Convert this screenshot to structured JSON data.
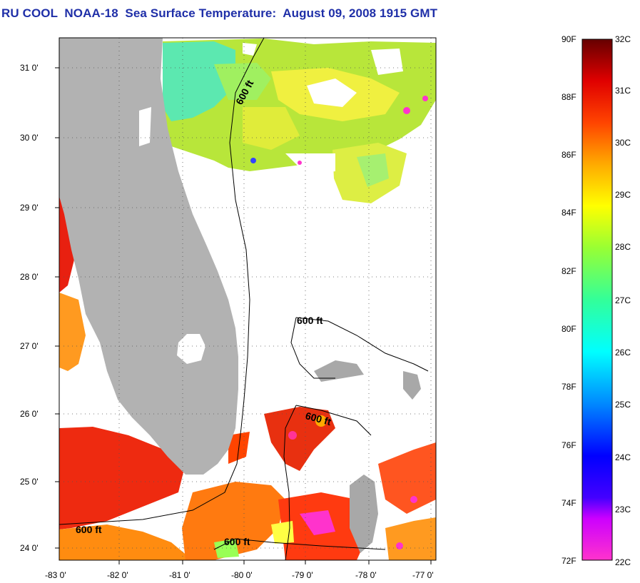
{
  "title": "RU COOL  NOAA-18  Sea Surface Temperature:  August 09, 2008 1915 GMT",
  "map": {
    "lat_labels": [
      "31 0'",
      "30 0'",
      "29 0'",
      "28 0'",
      "27 0'",
      "26 0'",
      "25 0'",
      "24 0'"
    ],
    "lon_labels": [
      "-83 0'",
      "-82 0'",
      "-81 0'",
      "-80 0'",
      "-79 0'",
      "-78 0'",
      "-77 0'"
    ],
    "contour_labels": [
      "600 ft",
      "600 ft",
      "600 ft",
      "600 ft",
      "600 ft"
    ],
    "land_color": "#b2b2b2",
    "nodata_color": "#ffffff"
  },
  "colorbar": {
    "fahrenheit_labels": [
      "90F",
      "88F",
      "86F",
      "84F",
      "82F",
      "80F",
      "78F",
      "76F",
      "74F",
      "72F"
    ],
    "celsius_labels": [
      "32C",
      "31C",
      "30C",
      "29C",
      "28C",
      "27C",
      "26C",
      "25C",
      "24C",
      "23C",
      "22C"
    ],
    "gradient": [
      "#ff33cc",
      "#9900ff",
      "#0000ff",
      "#0099ff",
      "#00ffff",
      "#33ff99",
      "#99ff33",
      "#ffff00",
      "#ffaa00",
      "#ff4400",
      "#ee0000",
      "#660000"
    ]
  }
}
